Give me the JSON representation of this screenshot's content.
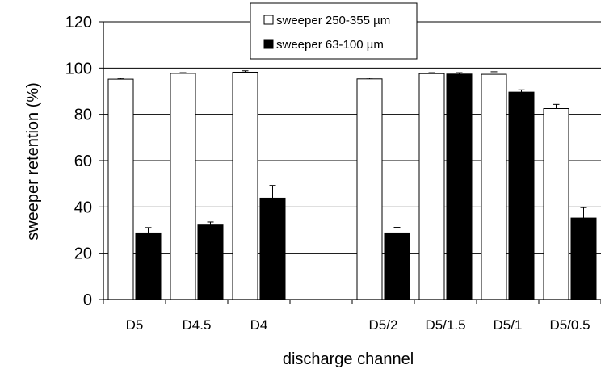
{
  "chart_data": {
    "type": "bar",
    "xlabel": "discharge channel",
    "ylabel": "sweeper retention (%)",
    "ylim": [
      0,
      120
    ],
    "yticks": [
      "0",
      "20",
      "40",
      "60",
      "80",
      "100",
      "120"
    ],
    "categories": [
      "D5",
      "D4.5",
      "D4",
      "",
      "D5/2",
      "D5/1.5",
      "D5/1",
      "D5/0.5"
    ],
    "series": [
      {
        "name": "sweeper 250-355 µm",
        "color": "#ffffff",
        "values": [
          95.2,
          97.7,
          98.2,
          null,
          95.3,
          97.6,
          97.3,
          82.5
        ],
        "errors": [
          0.4,
          0.3,
          0.6,
          null,
          0.4,
          0.4,
          1.1,
          1.8
        ]
      },
      {
        "name": "sweeper 63-100 µm",
        "color": "#000000",
        "values": [
          28.8,
          32.2,
          43.8,
          null,
          28.8,
          97.4,
          89.6,
          35.2
        ],
        "errors": [
          2.3,
          1.3,
          5.5,
          null,
          2.4,
          0.6,
          1.0,
          4.5
        ]
      }
    ],
    "legend_position": "top-center",
    "grid": "horizontal"
  }
}
